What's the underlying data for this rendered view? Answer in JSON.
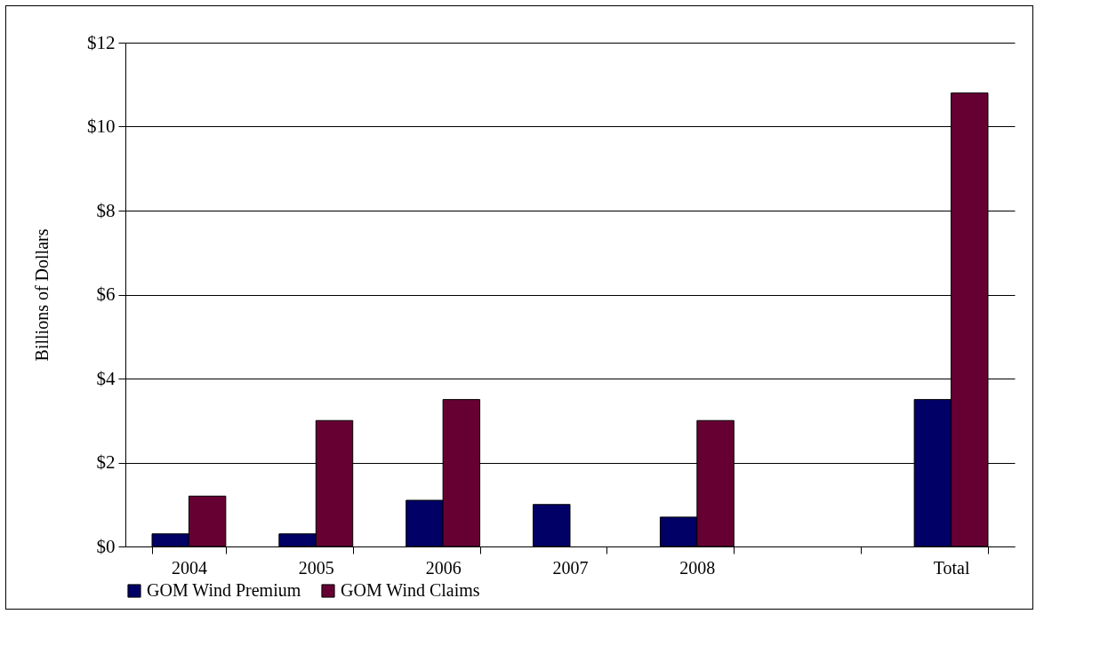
{
  "chart_data": {
    "type": "bar",
    "ylabel": "Billions  of Dollars",
    "categories": [
      "2004",
      "2005",
      "2006",
      "2007",
      "2008",
      null,
      "Total"
    ],
    "series": [
      {
        "name": "GOM Wind Premium",
        "color": "#000066",
        "values": [
          0.3,
          0.3,
          1.1,
          1.0,
          0.7,
          null,
          3.5
        ]
      },
      {
        "name": "GOM Wind Claims",
        "color": "#660033",
        "values": [
          1.2,
          3.0,
          3.5,
          null,
          3.0,
          null,
          10.8
        ]
      }
    ],
    "ylim": [
      0,
      12
    ],
    "yticks": [
      {
        "value": 0,
        "label": "$0"
      },
      {
        "value": 2,
        "label": "$2"
      },
      {
        "value": 4,
        "label": "$4"
      },
      {
        "value": 6,
        "label": "$6"
      },
      {
        "value": 8,
        "label": "$8"
      },
      {
        "value": 10,
        "label": "$10"
      },
      {
        "value": 12,
        "label": "$12"
      }
    ],
    "grid": "y",
    "legend": "bottom"
  }
}
